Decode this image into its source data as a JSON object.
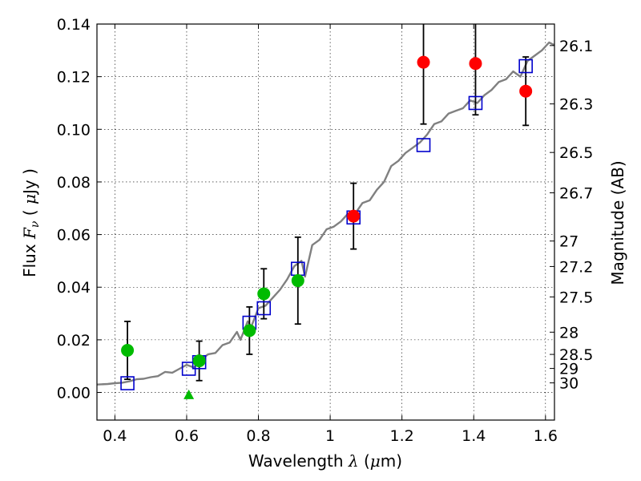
{
  "chart_data": {
    "type": "scatter",
    "title": "",
    "xlabel": {
      "prefix": "Wavelength ",
      "symbol": "λ",
      "unit_open": " (",
      "unit_mu": "μ",
      "unit_rest": "m)"
    },
    "ylabel": {
      "prefix": "Flux ",
      "symbol": "F",
      "subscript": "ν",
      "unit_open": " ( ",
      "unit_mu": "μ",
      "unit_rest": "Jy )"
    },
    "y2label": "Magnitude (AB)",
    "xlim": [
      0.35,
      1.625
    ],
    "ylim": [
      -0.0105,
      0.14
    ],
    "grid": true,
    "x_ticks": [
      {
        "v": 0.4,
        "label": "0.4"
      },
      {
        "v": 0.6,
        "label": "0.6"
      },
      {
        "v": 0.8,
        "label": "0.8"
      },
      {
        "v": 1.0,
        "label": "1"
      },
      {
        "v": 1.2,
        "label": "1.2"
      },
      {
        "v": 1.4,
        "label": "1.4"
      },
      {
        "v": 1.6,
        "label": "1.6"
      }
    ],
    "y_ticks": [
      {
        "v": 0.0,
        "label": "0.00"
      },
      {
        "v": 0.02,
        "label": "0.02"
      },
      {
        "v": 0.04,
        "label": "0.04"
      },
      {
        "v": 0.06,
        "label": "0.06"
      },
      {
        "v": 0.08,
        "label": "0.08"
      },
      {
        "v": 0.1,
        "label": "0.10"
      },
      {
        "v": 0.12,
        "label": "0.12"
      },
      {
        "v": 0.14,
        "label": "0.14"
      }
    ],
    "mag_ticks": [
      {
        "mag": 26.1,
        "label": "26.1"
      },
      {
        "mag": 26.3,
        "label": "26.3"
      },
      {
        "mag": 26.5,
        "label": "26.5"
      },
      {
        "mag": 26.7,
        "label": "26.7"
      },
      {
        "mag": 27,
        "label": "27"
      },
      {
        "mag": 27.2,
        "label": "27.2"
      },
      {
        "mag": 27.5,
        "label": "27.5"
      },
      {
        "mag": 28,
        "label": "28"
      },
      {
        "mag": 28.5,
        "label": "28.5"
      },
      {
        "mag": 29,
        "label": "29"
      },
      {
        "mag": 30,
        "label": "30"
      }
    ],
    "colors": {
      "model": "#808080",
      "green": "#00bb00",
      "red": "#ff0000",
      "blue": "#0000cc",
      "errorbar": "#000000",
      "grid": "#000000"
    },
    "model_spectrum": [
      [
        0.35,
        0.003
      ],
      [
        0.38,
        0.0032
      ],
      [
        0.4,
        0.0035
      ],
      [
        0.42,
        0.0037
      ],
      [
        0.44,
        0.0042
      ],
      [
        0.46,
        0.005
      ],
      [
        0.48,
        0.0052
      ],
      [
        0.5,
        0.0058
      ],
      [
        0.52,
        0.0062
      ],
      [
        0.54,
        0.0078
      ],
      [
        0.56,
        0.0075
      ],
      [
        0.58,
        0.009
      ],
      [
        0.6,
        0.0105
      ],
      [
        0.62,
        0.0095
      ],
      [
        0.64,
        0.0125
      ],
      [
        0.66,
        0.0145
      ],
      [
        0.68,
        0.015
      ],
      [
        0.7,
        0.018
      ],
      [
        0.72,
        0.019
      ],
      [
        0.74,
        0.023
      ],
      [
        0.75,
        0.02
      ],
      [
        0.77,
        0.027
      ],
      [
        0.78,
        0.025
      ],
      [
        0.8,
        0.032
      ],
      [
        0.82,
        0.033
      ],
      [
        0.84,
        0.036
      ],
      [
        0.86,
        0.039
      ],
      [
        0.88,
        0.043
      ],
      [
        0.9,
        0.048
      ],
      [
        0.92,
        0.05
      ],
      [
        0.93,
        0.044
      ],
      [
        0.95,
        0.056
      ],
      [
        0.97,
        0.058
      ],
      [
        0.99,
        0.062
      ],
      [
        1.01,
        0.063
      ],
      [
        1.03,
        0.065
      ],
      [
        1.05,
        0.068
      ],
      [
        1.07,
        0.068
      ],
      [
        1.09,
        0.072
      ],
      [
        1.11,
        0.073
      ],
      [
        1.13,
        0.077
      ],
      [
        1.15,
        0.08
      ],
      [
        1.17,
        0.086
      ],
      [
        1.19,
        0.088
      ],
      [
        1.21,
        0.091
      ],
      [
        1.23,
        0.093
      ],
      [
        1.25,
        0.095
      ],
      [
        1.27,
        0.098
      ],
      [
        1.29,
        0.102
      ],
      [
        1.31,
        0.103
      ],
      [
        1.33,
        0.106
      ],
      [
        1.35,
        0.107
      ],
      [
        1.37,
        0.108
      ],
      [
        1.39,
        0.111
      ],
      [
        1.41,
        0.11
      ],
      [
        1.43,
        0.113
      ],
      [
        1.45,
        0.115
      ],
      [
        1.47,
        0.118
      ],
      [
        1.49,
        0.119
      ],
      [
        1.51,
        0.122
      ],
      [
        1.53,
        0.12
      ],
      [
        1.55,
        0.126
      ],
      [
        1.57,
        0.128
      ],
      [
        1.59,
        0.13
      ],
      [
        1.61,
        0.133
      ],
      [
        1.625,
        0.132
      ]
    ],
    "green_points": [
      {
        "x": 0.435,
        "y": 0.016,
        "err": 0.011
      },
      {
        "x": 0.635,
        "y": 0.012,
        "err": 0.0075
      },
      {
        "x": 0.775,
        "y": 0.0235,
        "err": 0.009
      },
      {
        "x": 0.815,
        "y": 0.0375,
        "err": 0.0095
      },
      {
        "x": 0.91,
        "y": 0.0425,
        "err": 0.0165
      }
    ],
    "green_upper_limit": {
      "x": 0.606,
      "y": -0.001
    },
    "red_points": [
      {
        "x": 1.065,
        "y": 0.067,
        "err": 0.0125
      },
      {
        "x": 1.26,
        "y": 0.1255,
        "err": 0.0235
      },
      {
        "x": 1.405,
        "y": 0.125,
        "err": 0.0195
      },
      {
        "x": 1.545,
        "y": 0.1145,
        "err": 0.013
      }
    ],
    "model_squares": [
      {
        "x": 0.435,
        "y": 0.0035
      },
      {
        "x": 0.606,
        "y": 0.009
      },
      {
        "x": 0.635,
        "y": 0.0115
      },
      {
        "x": 0.775,
        "y": 0.0265
      },
      {
        "x": 0.815,
        "y": 0.032
      },
      {
        "x": 0.91,
        "y": 0.047
      },
      {
        "x": 1.065,
        "y": 0.0665
      },
      {
        "x": 1.26,
        "y": 0.094
      },
      {
        "x": 1.405,
        "y": 0.11
      },
      {
        "x": 1.545,
        "y": 0.124
      }
    ]
  }
}
